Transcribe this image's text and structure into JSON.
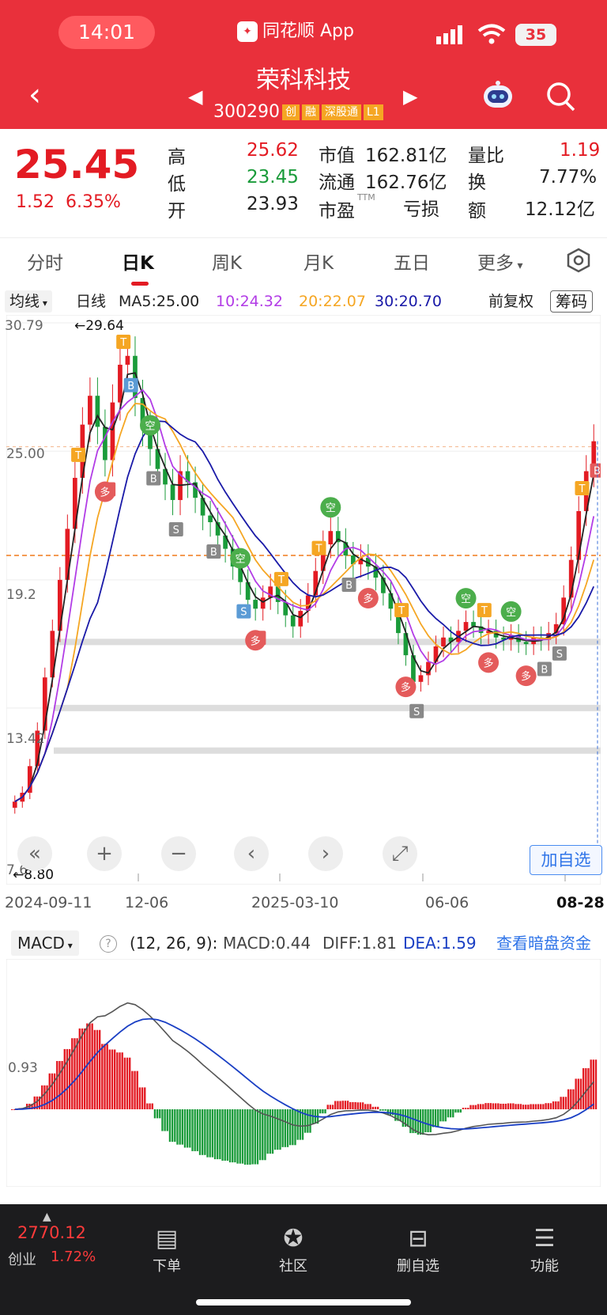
{
  "status_bar": {
    "time": "14:01",
    "app_label": "同花顺 App",
    "battery": "35"
  },
  "header": {
    "stock_name": "荣科科技",
    "stock_code": "300290",
    "tags": [
      "创",
      "融",
      "深股通",
      "L1"
    ]
  },
  "quote": {
    "price": "25.45",
    "change": "1.52",
    "change_pct": "6.35%",
    "rows": [
      {
        "l1": "高",
        "v1": "25.62",
        "l2": "市值",
        "v2": "162.81亿",
        "l3": "量比",
        "v3": "1.19"
      },
      {
        "l1": "低",
        "v1": "23.45",
        "l2": "流通",
        "v2": "162.76亿",
        "l3": "换",
        "v3": "7.77%"
      },
      {
        "l1": "开",
        "v1": "23.93",
        "l2": "市盈",
        "v2": "亏损",
        "l3": "额",
        "v3": "12.12亿"
      }
    ],
    "ttm": "TTM"
  },
  "tabs": [
    "分时",
    "日K",
    "周K",
    "月K",
    "五日",
    "更多"
  ],
  "ma_bar": {
    "selector": "均线",
    "period": "日线",
    "ma5": "MA5:25.00",
    "ma10": "10:24.32",
    "ma20": "20:22.07",
    "ma30": "30:20.70",
    "adjust": "前复权",
    "chip": "筹码"
  },
  "chart_colors": {
    "ma5": "#222222",
    "ma10": "#b23ce6",
    "ma20": "#f5a623",
    "ma30": "#1a1aa8",
    "up": "#e31b23",
    "down": "#1a9b3a"
  },
  "chart_data": {
    "type": "candlestick",
    "y_labels": [
      "30.79",
      "25.00",
      "19.2",
      "13.42",
      "7.6"
    ],
    "ylim": [
      7.6,
      30.79
    ],
    "high_label": "←29.64",
    "low_label": "←8.80",
    "x_labels": [
      "2024-09-11",
      "12-06",
      "2025-03-10",
      "06-06",
      "08-28"
    ],
    "reference_line": 20.3,
    "close_series": [
      9.2,
      9.6,
      10.8,
      12.4,
      14.8,
      16.9,
      19.2,
      21.5,
      23.8,
      26.2,
      27.5,
      26.1,
      24.6,
      27.2,
      28.9,
      29.3,
      27.4,
      26.0,
      25.1,
      24.2,
      23.5,
      22.8,
      24.1,
      23.6,
      22.9,
      22.1,
      21.8,
      21.2,
      20.6,
      19.8,
      19.1,
      18.3,
      17.9,
      18.4,
      18.9,
      18.2,
      17.6,
      17.1,
      17.8,
      18.5,
      19.6,
      20.8,
      21.4,
      20.9,
      20.3,
      19.9,
      20.2,
      19.8,
      19.3,
      18.6,
      17.9,
      16.8,
      15.8,
      14.6,
      14.9,
      15.5,
      16.2,
      16.6,
      16.4,
      16.9,
      17.3,
      17.1,
      16.8,
      16.9,
      16.6,
      16.5,
      16.7,
      16.4,
      16.3,
      16.6,
      16.5,
      16.8,
      17.2,
      18.4,
      20.1,
      22.3,
      24.1,
      25.45
    ],
    "macd": {
      "label": "MACD",
      "params": "(12, 26, 9):",
      "macd": "MACD:0.44",
      "diff": "DIFF:1.81",
      "dea": "DEA:1.59",
      "link": "查看暗盘资金",
      "y_label": "0.93"
    }
  },
  "controls": {
    "add_watch": "加自选"
  },
  "bottom_bar": {
    "index_value": "2770.12",
    "index_name": "创业",
    "index_pct": "1.72%",
    "items": [
      "下单",
      "社区",
      "删自选",
      "功能"
    ]
  }
}
